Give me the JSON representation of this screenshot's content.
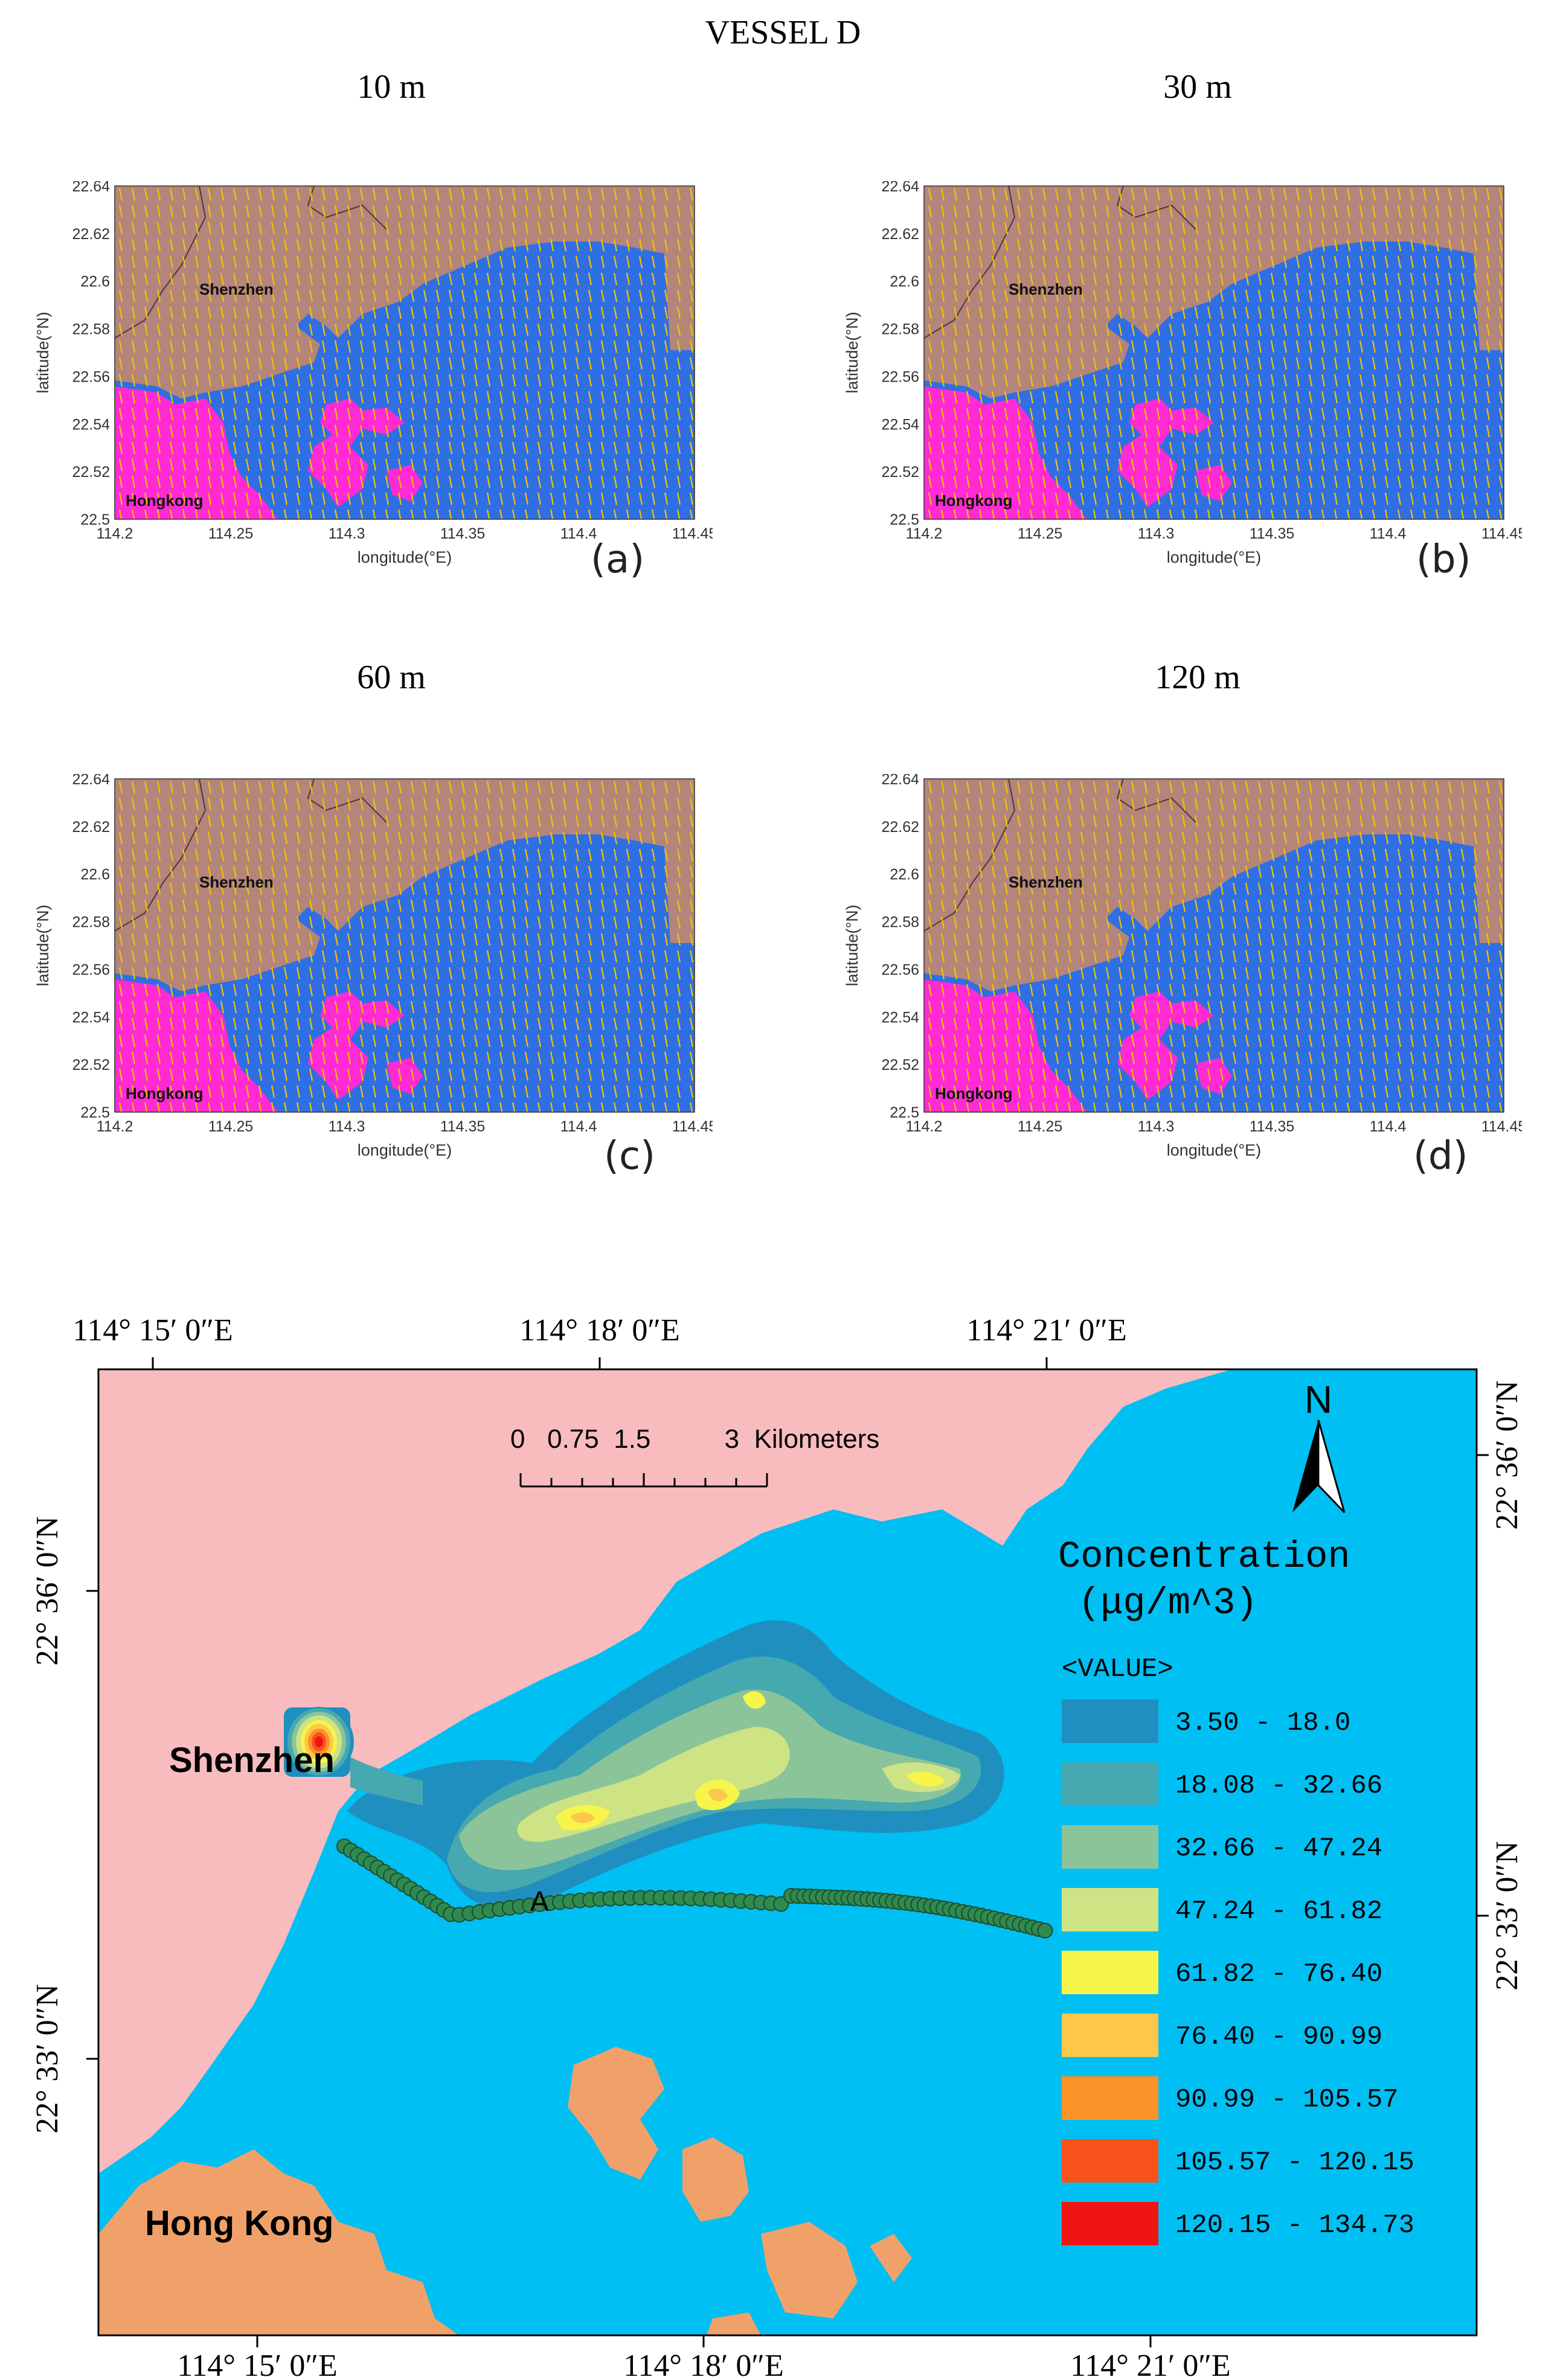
{
  "figure_title": "VESSEL D",
  "panels": [
    {
      "height_label": "10 m",
      "letter": "(a)"
    },
    {
      "height_label": "30 m",
      "letter": "(b)"
    },
    {
      "height_label": "60 m",
      "letter": "(c)"
    },
    {
      "height_label": "120 m",
      "letter": "(d)"
    }
  ],
  "wind_map": {
    "xlabel": "longitude(°E)",
    "ylabel": "latitude(°N)",
    "x_ticks": [
      "114.2",
      "114.25",
      "114.3",
      "114.35",
      "114.4",
      "114.45"
    ],
    "y_ticks": [
      "22.64",
      "22.62",
      "22.6",
      "22.58",
      "22.56",
      "22.54",
      "22.52",
      "22.5"
    ],
    "label_shenzhen": "Shenzhen",
    "label_hongkong": "Hongkong",
    "colors": {
      "land_shenzhen": "#b4857a",
      "land_hongkong": "#ff2ad4",
      "sea": "#2f6fe3",
      "arrows": "#f2c400",
      "border": "#4a3a3a"
    }
  },
  "concentration_map": {
    "top_ticks": [
      "114°  15′ 0″E",
      "114°  18′ 0″E",
      "114°  21′ 0″E"
    ],
    "bottom_ticks": [
      "114°  15′ 0″E",
      "114°  18′ 0″E",
      "114°  21′ 0″E"
    ],
    "left_ticks": [
      "22°  36′ 0″N",
      "22°  33′ 0″N"
    ],
    "right_ticks": [
      "22°  36′ 0″N",
      "22°  33′ 0″N"
    ],
    "scale_label": "0   0.75  1.5          3  Kilometers",
    "north_label": "N",
    "label_shenzhen": "Shenzhen",
    "label_hongkong": "Hong Kong",
    "point_label": "A",
    "legend_title_1": "Concentration",
    "legend_title_2": "(μg/m^3)",
    "legend_value_header": "<VALUE>",
    "legend": [
      {
        "range": "3.50 - 18.0",
        "color": "#1f8fc0"
      },
      {
        "range": "18.08 - 32.66",
        "color": "#46a9b0"
      },
      {
        "range": "32.66 - 47.24",
        "color": "#8cc49a"
      },
      {
        "range": "47.24 - 61.82",
        "color": "#cde384"
      },
      {
        "range": "61.82 - 76.40",
        "color": "#f7f54a"
      },
      {
        "range": "76.40 - 90.99",
        "color": "#fdc84a"
      },
      {
        "range": "90.99 - 105.57",
        "color": "#fc9328"
      },
      {
        "range": "105.57 - 120.15",
        "color": "#f9531c"
      },
      {
        "range": "120.15 - 134.73",
        "color": "#f01414"
      }
    ],
    "colors": {
      "sea": "#00bff3",
      "land_north": "#f8bcbe",
      "land_south": "#f0a16a",
      "track": "#2f8a50"
    }
  }
}
